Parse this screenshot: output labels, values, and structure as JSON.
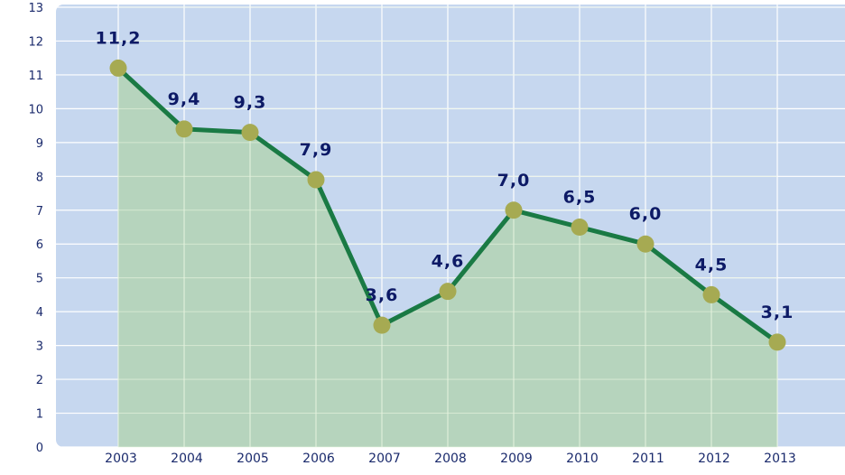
{
  "chart_data": {
    "type": "area",
    "categories": [
      "2003",
      "2004",
      "2005",
      "2006",
      "2007",
      "2008",
      "2009",
      "2010",
      "2011",
      "2012",
      "2013"
    ],
    "values": [
      11.2,
      9.4,
      9.3,
      7.9,
      3.6,
      4.6,
      7.0,
      6.5,
      6.0,
      4.5,
      3.1
    ],
    "data_labels": [
      "11,2",
      "9,4",
      "9,3",
      "7,9",
      "3,6",
      "4,6",
      "7,0",
      "6,5",
      "6,0",
      "4,5",
      "3,1"
    ],
    "yticks": [
      "0",
      "1",
      "2",
      "3",
      "4",
      "5",
      "6",
      "7",
      "8",
      "9",
      "10",
      "11",
      "12",
      "13"
    ],
    "ylim": [
      0,
      13
    ],
    "title": "",
    "xlabel": "",
    "ylabel": "",
    "grid": true,
    "legend": "none",
    "colors": {
      "plot_background": "#c6d7ef",
      "area_fill": "#b3d4b4",
      "line": "#1a7a44",
      "marker": "#a6aa52",
      "grid": "#ffffff",
      "tick_text": "#1a2a6c",
      "data_label_text": "#0d1a66"
    }
  }
}
